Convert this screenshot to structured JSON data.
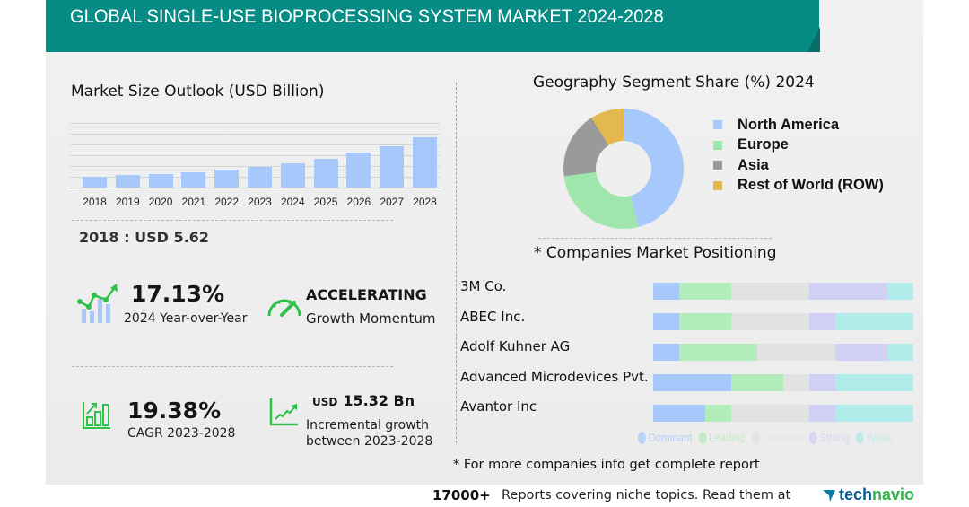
{
  "header": {
    "title": "GLOBAL SINGLE-USE BIOPROCESSING SYSTEM MARKET 2024-2028",
    "color": "#068c84"
  },
  "market_size": {
    "title": "Market Size Outlook (USD Billion)",
    "base_value_text": "2018 : USD  5.62",
    "bar_color": "#a6c8fb"
  },
  "kpis": {
    "yoy": {
      "value": "17.13%",
      "label": "2024 Year-over-Year",
      "icon": "growth-chart-icon"
    },
    "momentum": {
      "value": "ACCELERATING",
      "label": "Growth Momentum",
      "icon": "speedometer-icon"
    },
    "cagr": {
      "value": "19.38%",
      "label": "CAGR 2023-2028",
      "icon": "bar-growth-icon"
    },
    "incremental": {
      "currency": "USD",
      "value": "15.32 Bn",
      "label_line1": "Incremental growth",
      "label_line2": "between 2023-2028",
      "icon": "trend-line-icon"
    }
  },
  "geography": {
    "title": "Geography Segment Share (%) 2024",
    "legend": [
      {
        "label": "North America",
        "color": "#a6c8fb"
      },
      {
        "label": "Europe",
        "color": "#9fe6ad"
      },
      {
        "label": "Asia",
        "color": "#9a9a9a"
      },
      {
        "label": "Rest of World (ROW)",
        "color": "#e3b84f"
      }
    ]
  },
  "companies": {
    "title": "* Companies Market Positioning",
    "items": [
      {
        "name": "3M Co.",
        "segments": [
          10,
          20,
          30,
          30,
          10
        ]
      },
      {
        "name": "ABEC Inc.",
        "segments": [
          10,
          20,
          30,
          10,
          30
        ]
      },
      {
        "name": "Adolf Kuhner AG",
        "segments": [
          10,
          30,
          30,
          20,
          10
        ]
      },
      {
        "name": "Advanced Microdevices Pvt.",
        "segments": [
          30,
          20,
          10,
          10,
          30
        ]
      },
      {
        "name": "Avantor Inc",
        "segments": [
          20,
          10,
          30,
          10,
          30
        ]
      }
    ],
    "legend": [
      {
        "label": "Dominant",
        "color": "#a6c8fb"
      },
      {
        "label": "Leading",
        "color": "#b3ecbb"
      },
      {
        "label": "Tentative",
        "color": "#e2e2e2"
      },
      {
        "label": "Strong",
        "color": "#cfd0f3"
      },
      {
        "label": "Weak",
        "color": "#b0ecea"
      }
    ],
    "footnote": "* For more companies info get complete report"
  },
  "footer": {
    "count": "17000+",
    "text": "Reports covering niche topics. Read them at",
    "brand_part1": "tech",
    "brand_part2": "navio"
  },
  "chart_data": [
    {
      "type": "bar",
      "title": "Market Size Outlook (USD Billion)",
      "categories": [
        "2018",
        "2019",
        "2020",
        "2021",
        "2022",
        "2023",
        "2024",
        "2025",
        "2026",
        "2027",
        "2028"
      ],
      "values": [
        5.62,
        6.5,
        7.2,
        8.1,
        9.2,
        10.74,
        12.58,
        15.0,
        18.0,
        21.5,
        26.06
      ],
      "xlabel": "",
      "ylabel": "USD Billion",
      "ylim": [
        0,
        30
      ],
      "grid": true,
      "annotations": [
        "2018 : USD 5.62",
        "17.13% 2024 Year-over-Year",
        "19.38% CAGR 2023-2028",
        "USD 15.32 Bn Incremental growth between 2023-2028"
      ]
    },
    {
      "type": "pie",
      "title": "Geography Segment Share (%) 2024",
      "categories": [
        "North America",
        "Europe",
        "Asia",
        "Rest of World (ROW)"
      ],
      "values": [
        46,
        27,
        18,
        9
      ],
      "legend_position": "right",
      "donut": true
    },
    {
      "type": "bar",
      "title": "* Companies Market Positioning",
      "stacked": true,
      "orientation": "horizontal",
      "categories": [
        "3M Co.",
        "ABEC Inc.",
        "Adolf Kuhner AG",
        "Advanced Microdevices Pvt.",
        "Avantor Inc"
      ],
      "series": [
        {
          "name": "Dominant",
          "values": [
            10,
            10,
            10,
            30,
            20
          ]
        },
        {
          "name": "Leading",
          "values": [
            20,
            20,
            30,
            20,
            10
          ]
        },
        {
          "name": "Tentative",
          "values": [
            30,
            30,
            30,
            10,
            30
          ]
        },
        {
          "name": "Strong",
          "values": [
            30,
            10,
            20,
            10,
            10
          ]
        },
        {
          "name": "Weak",
          "values": [
            10,
            30,
            10,
            30,
            30
          ]
        }
      ],
      "legend_position": "bottom"
    }
  ]
}
